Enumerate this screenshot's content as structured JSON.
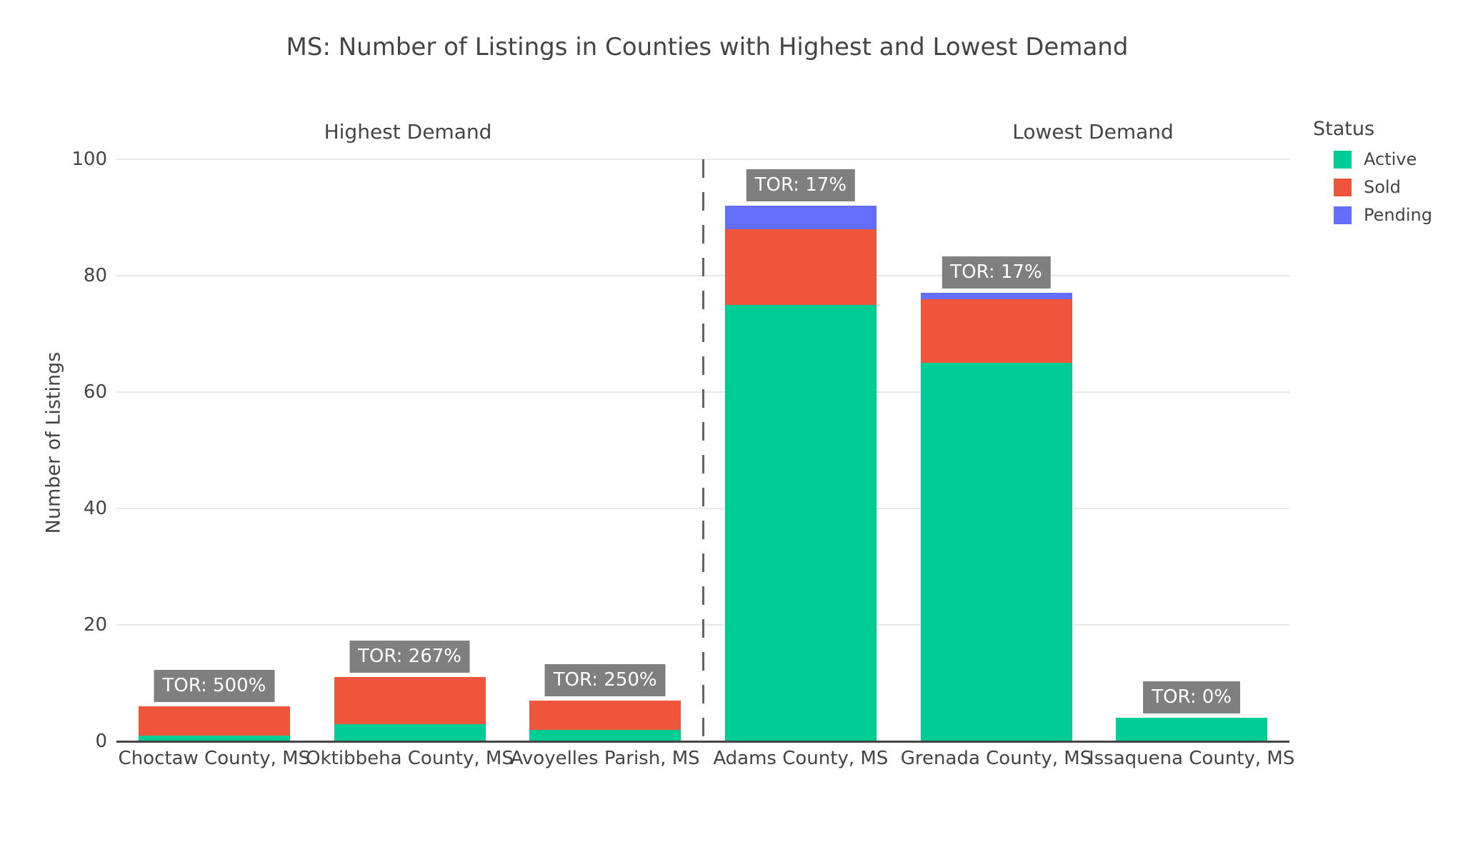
{
  "title": "MS: Number of Listings in Counties with Highest and Lowest Demand",
  "sections": [
    {
      "label": "Highest Demand"
    },
    {
      "label": "Lowest Demand"
    }
  ],
  "legend": {
    "title": "Status",
    "items": [
      {
        "label": "Active",
        "color": "#00CC96"
      },
      {
        "label": "Sold",
        "color": "#EF553B"
      },
      {
        "label": "Pending",
        "color": "#636EFA"
      }
    ]
  },
  "colors": {
    "active": "#00CC96",
    "sold": "#EF553B",
    "pending": "#636EFA",
    "annotation_bg": "#7F7F7F",
    "annotation_text": "#FFFFFF",
    "divider": "#636363",
    "grid": "#E8E8E8",
    "axis_line": "#444444",
    "text": "#444444",
    "background": "#FFFFFF"
  },
  "chart_data": {
    "type": "bar",
    "stacked": true,
    "title": "MS: Number of Listings in Counties with Highest and Lowest Demand",
    "xlabel": "",
    "ylabel": "Number of Listings",
    "ylim": [
      0,
      100
    ],
    "yticks": [
      0,
      20,
      40,
      60,
      80,
      100
    ],
    "grid": true,
    "legend_position": "right",
    "categories": [
      "Choctaw County, MS",
      "Oktibbeha County, MS",
      "Avoyelles Parish, MS",
      "Adams County, MS",
      "Grenada County, MS",
      "Issaquena County, MS"
    ],
    "series": [
      {
        "name": "Active",
        "color": "#00CC96",
        "values": [
          1,
          3,
          2,
          75,
          65,
          4
        ]
      },
      {
        "name": "Sold",
        "color": "#EF553B",
        "values": [
          5,
          8,
          5,
          13,
          11,
          0
        ]
      },
      {
        "name": "Pending",
        "color": "#636EFA",
        "values": [
          0,
          0,
          0,
          4,
          1,
          0
        ]
      }
    ],
    "totals": [
      6,
      11,
      7,
      92,
      77,
      4
    ],
    "annotations": [
      "TOR: 500%",
      "TOR: 267%",
      "TOR: 250%",
      "TOR: 17%",
      "TOR: 17%",
      "TOR: 0%"
    ],
    "divider_after_category_index": 2,
    "section_of_categories": [
      "Highest Demand",
      "Highest Demand",
      "Highest Demand",
      "Lowest Demand",
      "Lowest Demand",
      "Lowest Demand"
    ]
  }
}
